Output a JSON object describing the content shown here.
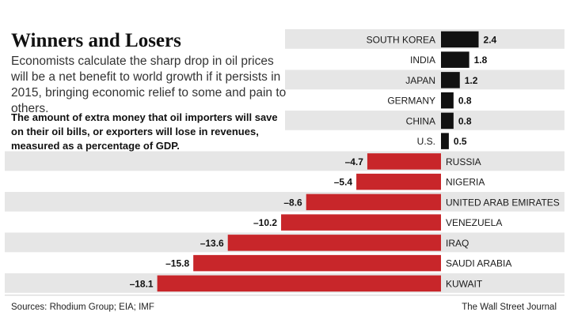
{
  "title": "Winners and Losers",
  "subtitle": "Economists calculate the sharp drop in oil prices will be a net benefit to world growth if it persists in 2015, bringing economic relief to some and pain to others.",
  "description": "The amount of extra money that oil importers will save on their oil bills, or exporters will lose in revenues, measured as a percentage of GDP.",
  "source": "Sources: Rhodium Group; EIA; IMF",
  "credit": "The Wall Street Journal",
  "colors": {
    "positive": "#111111",
    "negative": "#c8262a",
    "band": "#e6e6e6"
  },
  "chart_data": {
    "type": "bar",
    "orientation": "horizontal",
    "categories": [
      "SOUTH KOREA",
      "INDIA",
      "JAPAN",
      "GERMANY",
      "CHINA",
      "U.S.",
      "RUSSIA",
      "NIGERIA",
      "UNITED ARAB EMIRATES",
      "VENEZUELA",
      "IRAQ",
      "SAUDI ARABIA",
      "KUWAIT"
    ],
    "values": [
      2.4,
      1.8,
      1.2,
      0.8,
      0.8,
      0.5,
      -4.7,
      -5.4,
      -8.6,
      -10.2,
      -13.6,
      -15.8,
      -18.1
    ],
    "labels": [
      "2.4",
      "1.8",
      "1.2",
      "0.8",
      "0.8",
      "0.5",
      "–4.7",
      "–5.4",
      "–8.6",
      "–10.2",
      "–13.6",
      "–15.8",
      "–18.1"
    ],
    "grid": false,
    "legend": "none"
  }
}
